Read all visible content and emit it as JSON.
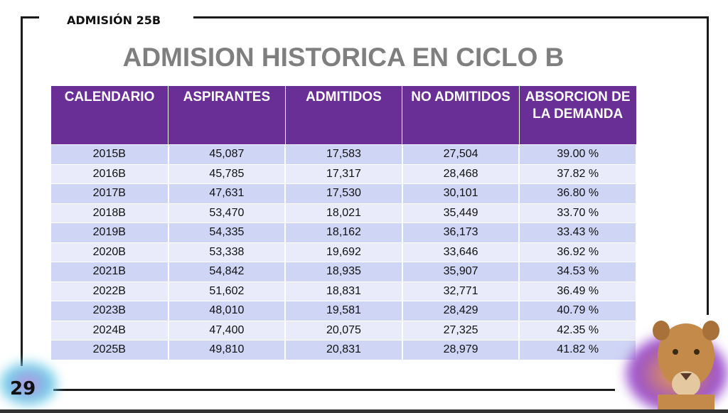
{
  "header": {
    "subtitle": "ADMISIÓN 25B",
    "title": "ADMISION HISTORICA EN CICLO B"
  },
  "table": {
    "columns": [
      "CALENDARIO",
      "ASPIRANTES",
      "ADMITIDOS",
      "NO ADMITIDOS",
      "ABSORCION DE LA DEMANDA"
    ],
    "rows": [
      [
        "2015B",
        "45,087",
        "17,583",
        "27,504",
        "39.00 %"
      ],
      [
        "2016B",
        "45,785",
        "17,317",
        "28,468",
        "37.82 %"
      ],
      [
        "2017B",
        "47,631",
        "17,530",
        "30,101",
        "36.80 %"
      ],
      [
        "2018B",
        "53,470",
        "18,021",
        "35,449",
        "33.70 %"
      ],
      [
        "2019B",
        "54,335",
        "18,162",
        "36,173",
        "33.43 %"
      ],
      [
        "2020B",
        "53,338",
        "19,692",
        "33,646",
        "36.92 %"
      ],
      [
        "2021B",
        "54,842",
        "18,935",
        "35,907",
        "34.53 %"
      ],
      [
        "2022B",
        "51,602",
        "18,831",
        "32,771",
        "36.49 %"
      ],
      [
        "2023B",
        "48,010",
        "19,581",
        "28,429",
        "40.79 %"
      ],
      [
        "2024B",
        "47,400",
        "20,075",
        "27,325",
        "42.35 %"
      ],
      [
        "2025B",
        "49,810",
        "20,831",
        "28,979",
        "41.82 %"
      ]
    ]
  },
  "footer": {
    "page_number": "29"
  },
  "colors": {
    "header_bg": "#6a2f97",
    "row_odd": "#cfd5f5",
    "row_even": "#e9ebfa",
    "title": "#7f7f7f"
  }
}
